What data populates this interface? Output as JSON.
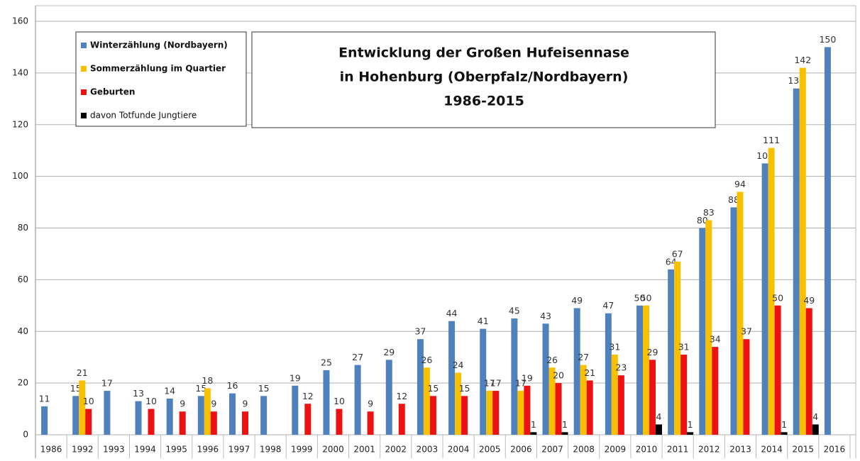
{
  "chart_data": {
    "type": "bar",
    "title": [
      "Entwicklung der Großen Hufeisennase",
      "in Hohenburg (Oberpfalz/Nordbayern)",
      "1986-2015"
    ],
    "categories": [
      "1986",
      "1992",
      "1993",
      "1994",
      "1995",
      "1996",
      "1997",
      "1998",
      "1999",
      "2000",
      "2001",
      "2002",
      "2003",
      "2004",
      "2005",
      "2006",
      "2007",
      "2008",
      "2009",
      "2010",
      "2011",
      "2012",
      "2013",
      "2014",
      "2015",
      "2016"
    ],
    "series": [
      {
        "name": "Winterzählung (Nordbayern)",
        "color": "#4f81bd",
        "values": [
          11,
          15,
          17,
          13,
          14,
          15,
          16,
          15,
          19,
          25,
          27,
          29,
          37,
          44,
          41,
          45,
          43,
          49,
          47,
          50,
          64,
          80,
          88,
          105,
          134,
          150
        ]
      },
      {
        "name": "Sommerzählung im Quartier",
        "color": "#f9c000",
        "values": [
          null,
          21,
          null,
          null,
          null,
          18,
          null,
          null,
          null,
          null,
          null,
          null,
          26,
          24,
          17,
          17,
          26,
          27,
          31,
          50,
          67,
          83,
          94,
          111,
          142,
          null
        ]
      },
      {
        "name": "Geburten",
        "color": "#ee1111",
        "values": [
          null,
          10,
          null,
          10,
          9,
          9,
          9,
          null,
          12,
          10,
          9,
          12,
          15,
          15,
          17,
          19,
          20,
          21,
          23,
          29,
          31,
          34,
          37,
          50,
          49,
          null
        ]
      },
      {
        "name": "davon Totfunde Jungtiere",
        "color": "#000000",
        "values": [
          null,
          null,
          null,
          null,
          null,
          null,
          null,
          null,
          null,
          null,
          null,
          null,
          null,
          null,
          null,
          1,
          1,
          null,
          null,
          4,
          1,
          null,
          null,
          1,
          4,
          null
        ]
      }
    ],
    "ylim": [
      0,
      160
    ],
    "yticks": [
      0,
      20,
      40,
      60,
      80,
      100,
      120,
      140,
      160
    ],
    "grid": true
  }
}
